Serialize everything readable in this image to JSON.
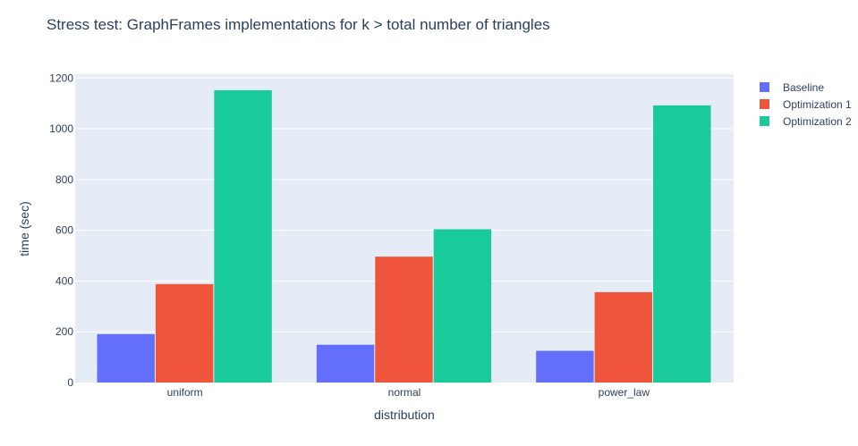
{
  "chart_data": {
    "type": "bar",
    "title": "Stress test: GraphFrames implementations for k > total number of triangles",
    "xlabel": "distribution",
    "ylabel": "time (sec)",
    "categories": [
      "uniform",
      "normal",
      "power_law"
    ],
    "ylim": [
      0,
      1200
    ],
    "yticks": [
      0,
      200,
      400,
      600,
      800,
      1000,
      1200
    ],
    "grid": true,
    "legend_position": "top-right",
    "series": [
      {
        "name": "Baseline",
        "color": "#636efa",
        "values": [
          191,
          149,
          125
        ]
      },
      {
        "name": "Optimization 1",
        "color": "#ef553b",
        "values": [
          388,
          496,
          356
        ]
      },
      {
        "name": "Optimization 2",
        "color": "#19cb9b",
        "values": [
          1152,
          604,
          1092
        ]
      }
    ],
    "plot_bg": "#e5ecf6"
  }
}
